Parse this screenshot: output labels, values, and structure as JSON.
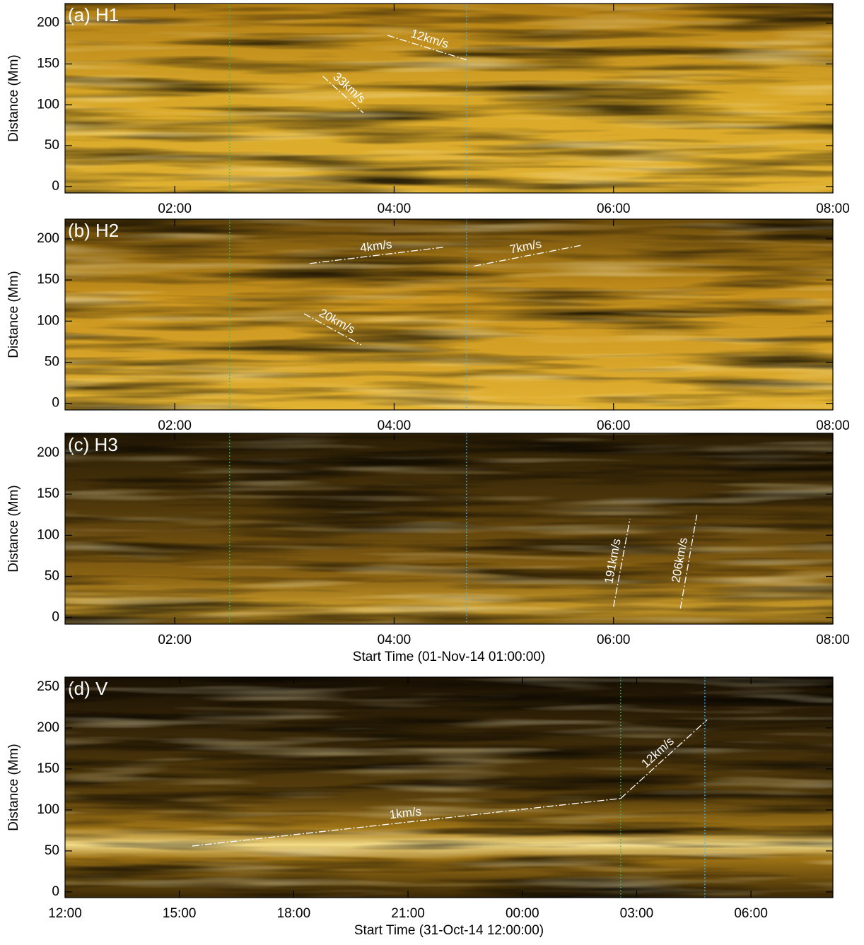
{
  "chart_data": [
    {
      "type": "time-distance",
      "title": "(a) H1",
      "ylabel": "Distance (Mm)",
      "xlim": [
        1,
        8
      ],
      "ylim": [
        -8,
        224
      ],
      "xticks": [
        {
          "value": 2,
          "label": "02:00"
        },
        {
          "value": 4,
          "label": "04:00"
        },
        {
          "value": 6,
          "label": "06:00"
        },
        {
          "value": 8,
          "label": "08:00"
        }
      ],
      "yticks": [
        0,
        50,
        100,
        150,
        200
      ],
      "vlines": [
        {
          "x": 2.5,
          "color": "#22c55e"
        },
        {
          "x": 4.66,
          "color": "#38bdf8"
        }
      ],
      "annotations": [
        {
          "text": "12km/s",
          "x": [
            3.94,
            4.66
          ],
          "y": [
            185,
            155
          ]
        },
        {
          "text": "33km/s",
          "x": [
            3.35,
            3.72
          ],
          "y": [
            135,
            90
          ]
        }
      ]
    },
    {
      "type": "time-distance",
      "title": "(b) H2",
      "ylabel": "Distance (Mm)",
      "xlim": [
        1,
        8
      ],
      "ylim": [
        -8,
        224
      ],
      "xticks": [
        {
          "value": 2,
          "label": "02:00"
        },
        {
          "value": 4,
          "label": "04:00"
        },
        {
          "value": 6,
          "label": "06:00"
        },
        {
          "value": 8,
          "label": "08:00"
        }
      ],
      "yticks": [
        0,
        50,
        100,
        150,
        200
      ],
      "vlines": [
        {
          "x": 2.5,
          "color": "#22c55e"
        },
        {
          "x": 4.66,
          "color": "#38bdf8"
        }
      ],
      "annotations": [
        {
          "text": "4km/s",
          "x": [
            3.23,
            4.46
          ],
          "y": [
            170,
            190
          ]
        },
        {
          "text": "7km/s",
          "x": [
            4.73,
            5.7
          ],
          "y": [
            167,
            192
          ]
        },
        {
          "text": "20km/s",
          "x": [
            3.18,
            3.7
          ],
          "y": [
            109,
            71
          ]
        }
      ]
    },
    {
      "type": "time-distance",
      "title": "(c) H3",
      "ylabel": "Distance (Mm)",
      "xlabel": "Start Time (01-Nov-14 01:00:00)",
      "xlim": [
        1,
        8
      ],
      "ylim": [
        -8,
        224
      ],
      "xticks": [
        {
          "value": 2,
          "label": "02:00"
        },
        {
          "value": 4,
          "label": "04:00"
        },
        {
          "value": 6,
          "label": "06:00"
        },
        {
          "value": 8,
          "label": "08:00"
        }
      ],
      "yticks": [
        0,
        50,
        100,
        150,
        200
      ],
      "vlines": [
        {
          "x": 2.5,
          "color": "#22c55e"
        },
        {
          "x": 4.66,
          "color": "#38bdf8"
        }
      ],
      "annotations": [
        {
          "text": "191km/s",
          "x": [
            6.0,
            6.15
          ],
          "y": [
            13,
            120
          ]
        },
        {
          "text": "206km/s",
          "x": [
            6.61,
            6.76
          ],
          "y": [
            11,
            125
          ]
        }
      ]
    },
    {
      "type": "time-distance",
      "title": "(d) V",
      "ylabel": "Distance (Mm)",
      "xlabel": "Start Time (31-Oct-14 12:00:00)",
      "xlim": [
        12,
        32.15
      ],
      "ylim": [
        -7,
        262
      ],
      "xticks": [
        {
          "value": 12,
          "label": "12:00"
        },
        {
          "value": 15,
          "label": "15:00"
        },
        {
          "value": 18,
          "label": "18:00"
        },
        {
          "value": 21,
          "label": "21:00"
        },
        {
          "value": 24,
          "label": "00:00"
        },
        {
          "value": 27,
          "label": "03:00"
        },
        {
          "value": 30,
          "label": "06:00"
        }
      ],
      "yticks": [
        0,
        50,
        100,
        150,
        200,
        250
      ],
      "vlines": [
        {
          "x": 26.58,
          "color": "#22c55e"
        },
        {
          "x": 28.79,
          "color": "#38bdf8"
        }
      ],
      "annotations": [
        {
          "text": "1km/s",
          "x": [
            15.34,
            26.58
          ],
          "y": [
            56,
            114
          ]
        },
        {
          "text": "12km/s",
          "x": [
            26.58,
            28.85
          ],
          "y": [
            114,
            210
          ]
        }
      ]
    }
  ]
}
